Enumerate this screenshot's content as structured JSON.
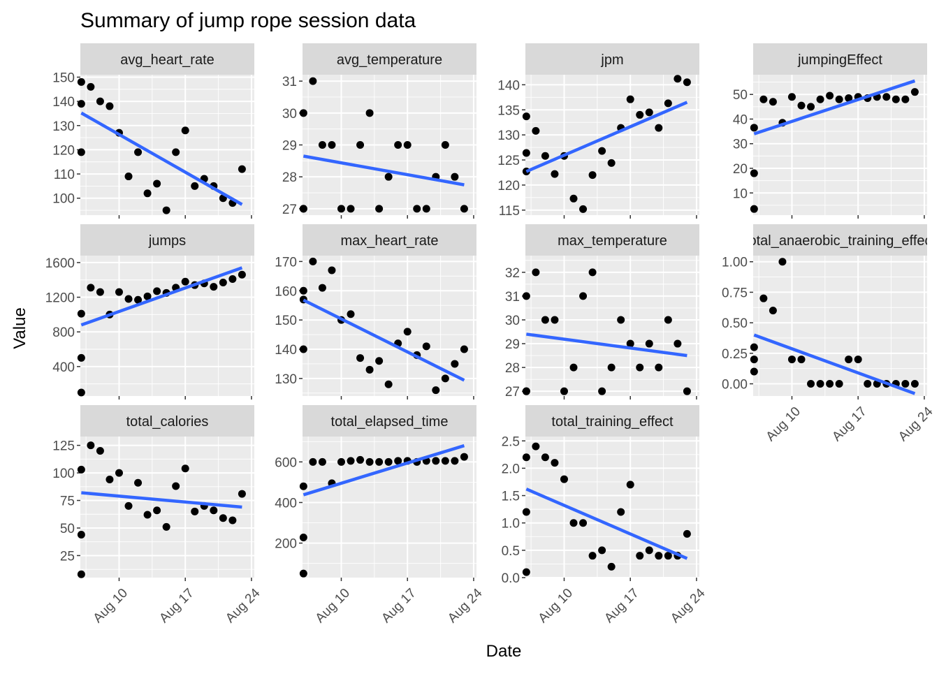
{
  "chart_data": {
    "type": "scatter",
    "title": "Summary of jump rope session data",
    "xlabel": "Date",
    "ylabel": "Value",
    "x_ticks": [
      "Aug 10",
      "Aug 17",
      "Aug 24"
    ],
    "x_tick_positions": [
      10,
      17,
      24
    ],
    "x_range": [
      5.9,
      24.3
    ],
    "x_dates": [
      6,
      6,
      6,
      7,
      8,
      9,
      10,
      11,
      12,
      13,
      14,
      15,
      16,
      17,
      18,
      19,
      20,
      21,
      22,
      23
    ],
    "legend": "none",
    "grid": true,
    "trend_line_color": "#3366FF",
    "point_color": "#000000",
    "panel_background": "#EBEBEB",
    "strip_background": "#D9D9D9",
    "panels": [
      {
        "name": "avg_heart_rate",
        "label": "avg_heart_rate",
        "y_ticks": [
          100,
          110,
          120,
          130,
          140,
          150
        ],
        "ylim": [
          93,
          151
        ],
        "values": [
          148,
          139,
          119,
          146,
          140,
          138,
          127,
          109,
          119,
          102,
          106,
          95,
          119,
          128,
          105,
          108,
          105,
          100,
          98,
          112
        ],
        "trend": [
          135.2,
          97.4
        ]
      },
      {
        "name": "avg_temperature",
        "label": "avg_temperature",
        "y_ticks": [
          27,
          28,
          29,
          30,
          31
        ],
        "ylim": [
          26.8,
          31.2
        ],
        "values": [
          30,
          27,
          27,
          31,
          29,
          29,
          27,
          27,
          29,
          30,
          27,
          28,
          29,
          29,
          27,
          27,
          28,
          29,
          28,
          27
        ],
        "trend": [
          28.65,
          27.75
        ]
      },
      {
        "name": "jpm",
        "label": "jpm",
        "y_ticks": [
          115,
          120,
          125,
          130,
          135,
          140
        ],
        "ylim": [
          114,
          142
        ],
        "values": [
          133.7,
          126.4,
          122.7,
          130.8,
          125.8,
          122.2,
          125.8,
          117.3,
          115.2,
          122,
          126.8,
          124.4,
          131.4,
          137.1,
          134,
          134.5,
          131.4,
          136.3,
          141.2,
          140.5
        ],
        "trend": [
          122.7,
          136.5
        ]
      },
      {
        "name": "jumpingEffect",
        "label": "jumpingEffect",
        "y_ticks": [
          10,
          20,
          30,
          40,
          50
        ],
        "ylim": [
          1,
          58
        ],
        "values": [
          36.5,
          18,
          3.5,
          48,
          47,
          38.5,
          49,
          45.5,
          45,
          48,
          49.5,
          48,
          48.5,
          49,
          48.5,
          49,
          49,
          48,
          48,
          51
        ],
        "trend": [
          34,
          55.5
        ]
      },
      {
        "name": "jumps",
        "label": "jumps",
        "y_ticks": [
          400,
          800,
          1200,
          1600
        ],
        "ylim": [
          60,
          1680
        ],
        "values": [
          1010,
          500,
          100,
          1310,
          1260,
          1000,
          1260,
          1180,
          1170,
          1210,
          1270,
          1250,
          1310,
          1380,
          1340,
          1360,
          1320,
          1370,
          1410,
          1460
        ],
        "trend": [
          880,
          1540
        ]
      },
      {
        "name": "max_heart_rate",
        "label": "max_heart_rate",
        "y_ticks": [
          130,
          140,
          150,
          160,
          170
        ],
        "ylim": [
          124,
          172
        ],
        "values": [
          160,
          157,
          140,
          170,
          161,
          167,
          150,
          152,
          137,
          133,
          136,
          128,
          142,
          146,
          138,
          141,
          126,
          130,
          135,
          140
        ],
        "trend": [
          156.8,
          129.4
        ]
      },
      {
        "name": "max_temperature",
        "label": "max_temperature",
        "y_ticks": [
          27,
          28,
          29,
          30,
          31,
          32
        ],
        "ylim": [
          26.8,
          32.7
        ],
        "values": [
          31,
          27,
          27,
          32,
          30,
          30,
          27,
          28,
          31,
          32,
          27,
          28,
          30,
          29,
          28,
          29,
          28,
          30,
          29,
          27
        ],
        "trend": [
          29.4,
          28.5
        ]
      },
      {
        "name": "total_anaerobic_training_effect",
        "label": "total_anaerobic_training_effect",
        "y_ticks": [
          0.0,
          0.25,
          0.5,
          0.75,
          1.0
        ],
        "y_tick_labels": [
          "0.00",
          "0.25",
          "0.50",
          "0.75",
          "1.00"
        ],
        "ylim": [
          -0.1,
          1.05
        ],
        "values": [
          0.2,
          0.3,
          0.1,
          0.7,
          0.6,
          1.0,
          0.2,
          0.2,
          0.0,
          0.0,
          0.0,
          0.0,
          0.2,
          0.2,
          0.0,
          0.0,
          0.0,
          0.0,
          0.0,
          0.0
        ],
        "trend": [
          0.4,
          -0.08
        ]
      },
      {
        "name": "total_calories",
        "label": "total_calories",
        "y_ticks": [
          25,
          50,
          75,
          100,
          125
        ],
        "ylim": [
          5,
          133
        ],
        "values": [
          103,
          44,
          8,
          125,
          120,
          94,
          100,
          70,
          91,
          62,
          66,
          51,
          88,
          104,
          65,
          70,
          66,
          59,
          57,
          81
        ],
        "trend": [
          82,
          69
        ]
      },
      {
        "name": "total_elapsed_time",
        "label": "total_elapsed_time",
        "y_ticks": [
          200,
          400,
          600
        ],
        "ylim": [
          30,
          725
        ],
        "values": [
          480,
          228,
          50,
          600,
          600,
          495,
          600,
          605,
          610,
          600,
          600,
          600,
          605,
          605,
          600,
          605,
          605,
          605,
          605,
          625
        ],
        "trend": [
          438,
          680
        ]
      },
      {
        "name": "total_training_effect",
        "label": "total_training_effect",
        "y_ticks": [
          0.0,
          0.5,
          1.0,
          1.5,
          2.0,
          2.5
        ],
        "y_tick_labels": [
          "0.0",
          "0.5",
          "1.0",
          "1.5",
          "2.0",
          "2.5"
        ],
        "ylim": [
          0,
          2.58
        ],
        "values": [
          2.2,
          1.2,
          0.1,
          2.4,
          2.2,
          2.1,
          1.8,
          1.0,
          1.0,
          0.4,
          0.5,
          0.2,
          1.2,
          1.7,
          0.4,
          0.5,
          0.4,
          0.4,
          0.4,
          0.8
        ],
        "trend": [
          1.62,
          0.35
        ]
      }
    ]
  }
}
